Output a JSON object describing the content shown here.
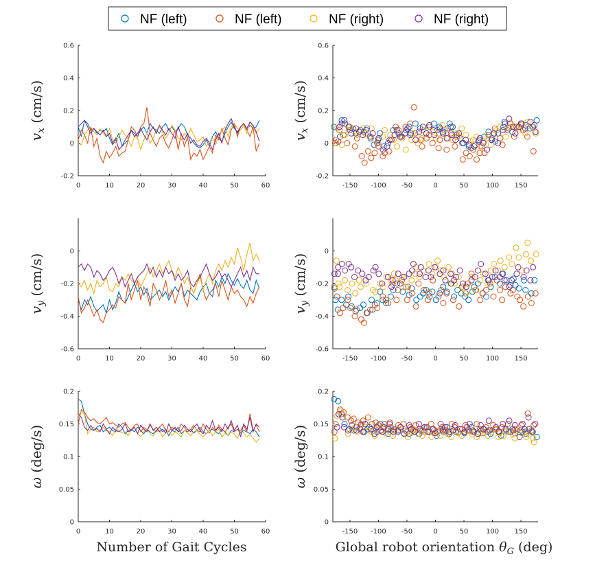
{
  "colors": {
    "s1": "#0072BD",
    "s2": "#D95319",
    "s3": "#EDB120",
    "s4": "#7E2F8E"
  },
  "legend": [
    {
      "name": "NF (left)",
      "color": "#0072BD"
    },
    {
      "name": "NF (left)",
      "color": "#D95319"
    },
    {
      "name": "NF (right)",
      "color": "#EDB120"
    },
    {
      "name": "NF (right)",
      "color": "#7E2F8E"
    }
  ],
  "chart_data": [
    {
      "id": "vx_cycles",
      "type": "line",
      "xlim": [
        0,
        60
      ],
      "ylim": [
        -0.2,
        0.6
      ],
      "xticks": [
        "0",
        "10",
        "20",
        "30",
        "40",
        "50",
        "60"
      ],
      "yticks": [
        "-0.2",
        "0",
        "0.2",
        "0.4",
        "0.6"
      ],
      "ylabel": "v_x (cm/s)",
      "xlabel": ""
    },
    {
      "id": "vx_orient",
      "type": "scatter",
      "xlim": [
        -180,
        180
      ],
      "ylim": [
        -0.2,
        0.6
      ],
      "xticks": [
        "-150",
        "-100",
        "-50",
        "0",
        "50",
        "100",
        "150"
      ],
      "yticks": [
        "-0.2",
        "0",
        "0.2",
        "0.4",
        "0.6"
      ],
      "ylabel": "v_x (cm/s)",
      "xlabel": ""
    },
    {
      "id": "vy_cycles",
      "type": "line",
      "xlim": [
        0,
        60
      ],
      "ylim": [
        -0.6,
        0.2
      ],
      "xticks": [
        "0",
        "10",
        "20",
        "30",
        "40",
        "50",
        "60"
      ],
      "yticks": [
        "-0.6",
        "-0.4",
        "-0.2",
        "0"
      ],
      "ylabel": "v_y (cm/s)",
      "xlabel": ""
    },
    {
      "id": "vy_orient",
      "type": "scatter",
      "xlim": [
        -180,
        180
      ],
      "ylim": [
        -0.6,
        0.2
      ],
      "xticks": [
        "-150",
        "-100",
        "-50",
        "0",
        "50",
        "100",
        "150"
      ],
      "yticks": [
        "-0.6",
        "-0.4",
        "-0.2",
        "0"
      ],
      "ylabel": "v_y (cm/s)",
      "xlabel": ""
    },
    {
      "id": "w_cycles",
      "type": "line",
      "xlim": [
        0,
        60
      ],
      "ylim": [
        0,
        0.2
      ],
      "xticks": [
        "0",
        "10",
        "20",
        "30",
        "40",
        "50",
        "60"
      ],
      "yticks": [
        "0",
        "0.05",
        "0.1",
        "0.15",
        "0.2"
      ],
      "ylabel": "ω (deg/s)",
      "xlabel": "Number of Gait Cycles"
    },
    {
      "id": "w_orient",
      "type": "scatter",
      "xlim": [
        -180,
        180
      ],
      "ylim": [
        0,
        0.2
      ],
      "xticks": [
        "-150",
        "-100",
        "-50",
        "0",
        "50",
        "100",
        "150"
      ],
      "yticks": [
        "0",
        "0.05",
        "0.1",
        "0.15",
        "0.2"
      ],
      "ylabel": "ω (deg/s)",
      "xlabel": "Global robot orientation θ_G (deg)"
    }
  ],
  "series_data": {
    "vx": [
      [
        0.1,
        0.04,
        0.14,
        0.12,
        0.08,
        0.09,
        0.06,
        0.08,
        0.07,
        0.09,
        0.03,
        -0.01,
        0.02,
        0.06,
        -0.02,
        0.0,
        0.02,
        0.08,
        0.06,
        0.04,
        0.08,
        0.1,
        0.06,
        0.12,
        0.09,
        0.08,
        0.06,
        0.1,
        0.12,
        0.08,
        0.1,
        0.07,
        0.09,
        0.12,
        0.1,
        0.05,
        0.03,
        0.0,
        -0.02,
        -0.03,
        -0.01,
        0.02,
        -0.02,
        0.04,
        0.07,
        0.03,
        0.01,
        0.06,
        0.1,
        0.13,
        0.09,
        0.07,
        0.1,
        0.12,
        0.08,
        0.11,
        0.09,
        0.1,
        0.14
      ],
      [
        0.02,
        0.08,
        0.05,
        0.0,
        0.1,
        -0.02,
        0.03,
        -0.08,
        -0.12,
        -0.05,
        -0.09,
        -0.06,
        -0.02,
        -0.08,
        -0.06,
        -0.05,
        0.02,
        0.1,
        0.08,
        0.04,
        0.1,
        0.12,
        0.22,
        0.06,
        0.02,
        -0.02,
        0.03,
        0.05,
        0.0,
        -0.03,
        0.02,
        0.08,
        -0.04,
        0.06,
        -0.02,
        0.04,
        -0.1,
        -0.06,
        -0.08,
        -0.04,
        -0.1,
        -0.06,
        -0.02,
        -0.06,
        0.05,
        0.02,
        0.09,
        0.03,
        -0.01,
        0.08,
        0.12,
        0.04,
        0.1,
        0.12,
        0.08,
        0.04,
        0.1,
        -0.05,
        0.0
      ],
      [
        0.0,
        -0.01,
        0.05,
        0.08,
        0.1,
        0.07,
        0.05,
        0.09,
        0.06,
        0.04,
        0.09,
        0.02,
        0.0,
        0.04,
        0.08,
        0.05,
        0.02,
        -0.02,
        0.04,
        0.03,
        -0.04,
        0.02,
        0.06,
        0.0,
        0.03,
        0.08,
        0.1,
        0.07,
        0.03,
        0.06,
        0.11,
        0.08,
        0.03,
        0.02,
        0.06,
        0.04,
        0.09,
        0.05,
        0.01,
        0.02,
        0.04,
        -0.02,
        0.01,
        0.03,
        -0.01,
        0.05,
        0.08,
        0.1,
        0.04,
        0.1,
        0.12,
        0.09,
        0.08,
        0.11,
        0.06,
        0.13,
        0.1,
        0.06,
        0.09
      ],
      [
        0.1,
        0.12,
        0.14,
        0.1,
        0.06,
        0.09,
        0.07,
        0.05,
        0.08,
        0.04,
        0.06,
        0.0,
        0.03,
        -0.04,
        -0.02,
        0.02,
        0.05,
        0.08,
        0.04,
        0.06,
        0.09,
        0.05,
        0.02,
        0.07,
        0.1,
        0.06,
        0.11,
        0.08,
        0.05,
        0.09,
        0.06,
        0.03,
        0.1,
        0.05,
        0.02,
        0.06,
        0.0,
        0.02,
        -0.01,
        -0.02,
        0.01,
        0.03,
        0.0,
        -0.04,
        0.02,
        0.06,
        0.0,
        0.08,
        0.12,
        0.15,
        0.1,
        0.06,
        0.1,
        0.12,
        0.09,
        0.13,
        0.11,
        0.07,
        0.01
      ]
    ],
    "vy": [
      [
        -0.3,
        -0.36,
        -0.3,
        -0.33,
        -0.28,
        -0.34,
        -0.37,
        -0.35,
        -0.33,
        -0.38,
        -0.3,
        -0.36,
        -0.32,
        -0.25,
        -0.3,
        -0.32,
        -0.28,
        -0.24,
        -0.2,
        -0.25,
        -0.22,
        -0.27,
        -0.23,
        -0.3,
        -0.28,
        -0.26,
        -0.24,
        -0.28,
        -0.25,
        -0.3,
        -0.26,
        -0.22,
        -0.25,
        -0.2,
        -0.28,
        -0.24,
        -0.26,
        -0.28,
        -0.3,
        -0.25,
        -0.22,
        -0.2,
        -0.26,
        -0.28,
        -0.18,
        -0.22,
        -0.16,
        -0.2,
        -0.14,
        -0.18,
        -0.21,
        -0.17,
        -0.21,
        -0.23,
        -0.18,
        -0.24,
        -0.26,
        -0.18,
        -0.23
      ],
      [
        -0.28,
        -0.38,
        -0.35,
        -0.3,
        -0.35,
        -0.4,
        -0.36,
        -0.42,
        -0.44,
        -0.38,
        -0.36,
        -0.33,
        -0.35,
        -0.28,
        -0.3,
        -0.32,
        -0.2,
        -0.3,
        -0.24,
        -0.18,
        -0.3,
        -0.22,
        -0.26,
        -0.34,
        -0.2,
        -0.24,
        -0.3,
        -0.26,
        -0.18,
        -0.28,
        -0.24,
        -0.32,
        -0.26,
        -0.2,
        -0.3,
        -0.34,
        -0.22,
        -0.26,
        -0.2,
        -0.14,
        -0.24,
        -0.3,
        -0.26,
        -0.24,
        -0.2,
        -0.28,
        -0.18,
        -0.24,
        -0.3,
        -0.22,
        -0.26,
        -0.24,
        -0.28,
        -0.3,
        -0.34,
        -0.28,
        -0.32,
        -0.26,
        -0.22
      ],
      [
        -0.2,
        -0.22,
        -0.18,
        -0.24,
        -0.2,
        -0.26,
        -0.18,
        -0.22,
        -0.2,
        -0.16,
        -0.24,
        -0.25,
        -0.2,
        -0.22,
        -0.16,
        -0.18,
        -0.14,
        -0.18,
        -0.2,
        -0.16,
        -0.22,
        -0.18,
        -0.14,
        -0.1,
        -0.16,
        -0.12,
        -0.08,
        -0.14,
        -0.1,
        -0.06,
        -0.12,
        -0.16,
        -0.1,
        -0.14,
        -0.2,
        -0.16,
        -0.22,
        -0.26,
        -0.2,
        -0.16,
        -0.24,
        -0.18,
        -0.14,
        -0.2,
        -0.12,
        -0.08,
        -0.12,
        -0.06,
        -0.1,
        -0.04,
        -0.08,
        0.02,
        -0.04,
        -0.12,
        -0.02,
        0.05,
        -0.06,
        -0.02,
        -0.06
      ],
      [
        -0.1,
        -0.08,
        -0.12,
        -0.08,
        -0.1,
        -0.16,
        -0.12,
        -0.14,
        -0.18,
        -0.16,
        -0.12,
        -0.1,
        -0.14,
        -0.2,
        -0.16,
        -0.22,
        -0.18,
        -0.14,
        -0.2,
        -0.16,
        -0.14,
        -0.12,
        -0.08,
        -0.14,
        -0.1,
        -0.16,
        -0.12,
        -0.16,
        -0.1,
        -0.14,
        -0.12,
        -0.18,
        -0.14,
        -0.18,
        -0.16,
        -0.12,
        -0.2,
        -0.22,
        -0.18,
        -0.16,
        -0.12,
        -0.08,
        -0.14,
        -0.18,
        -0.16,
        -0.12,
        -0.16,
        -0.14,
        -0.18,
        -0.22,
        -0.18,
        -0.14,
        -0.1,
        -0.16,
        -0.12,
        -0.18,
        -0.1,
        -0.14,
        -0.14
      ]
    ],
    "w": [
      [
        0.188,
        0.185,
        0.165,
        0.15,
        0.142,
        0.14,
        0.145,
        0.148,
        0.138,
        0.142,
        0.145,
        0.14,
        0.138,
        0.15,
        0.145,
        0.135,
        0.14,
        0.142,
        0.138,
        0.145,
        0.14,
        0.135,
        0.142,
        0.138,
        0.135,
        0.14,
        0.145,
        0.138,
        0.142,
        0.132,
        0.14,
        0.138,
        0.145,
        0.135,
        0.14,
        0.138,
        0.142,
        0.136,
        0.14,
        0.145,
        0.138,
        0.135,
        0.14,
        0.142,
        0.138,
        0.135,
        0.142,
        0.138,
        0.132,
        0.14,
        0.138,
        0.142,
        0.136,
        0.14,
        0.138,
        0.135,
        0.142,
        0.138,
        0.13
      ],
      [
        0.15,
        0.172,
        0.168,
        0.16,
        0.155,
        0.158,
        0.152,
        0.15,
        0.155,
        0.16,
        0.15,
        0.152,
        0.148,
        0.145,
        0.15,
        0.152,
        0.145,
        0.14,
        0.148,
        0.15,
        0.138,
        0.145,
        0.14,
        0.148,
        0.142,
        0.138,
        0.145,
        0.15,
        0.14,
        0.138,
        0.145,
        0.142,
        0.14,
        0.15,
        0.145,
        0.138,
        0.142,
        0.148,
        0.14,
        0.138,
        0.15,
        0.142,
        0.136,
        0.145,
        0.14,
        0.148,
        0.142,
        0.138,
        0.145,
        0.15,
        0.138,
        0.142,
        0.14,
        0.148,
        0.138,
        0.166,
        0.14,
        0.148,
        0.138
      ],
      [
        0.162,
        0.17,
        0.165,
        0.135,
        0.142,
        0.145,
        0.138,
        0.14,
        0.145,
        0.14,
        0.138,
        0.132,
        0.142,
        0.14,
        0.136,
        0.138,
        0.132,
        0.14,
        0.145,
        0.136,
        0.13,
        0.138,
        0.142,
        0.135,
        0.132,
        0.138,
        0.14,
        0.13,
        0.136,
        0.14,
        0.132,
        0.138,
        0.135,
        0.13,
        0.14,
        0.136,
        0.132,
        0.138,
        0.14,
        0.134,
        0.13,
        0.136,
        0.14,
        0.132,
        0.138,
        0.142,
        0.13,
        0.136,
        0.132,
        0.138,
        0.134,
        0.128,
        0.14,
        0.136,
        0.13,
        0.134,
        0.128,
        0.122,
        0.128
      ],
      [
        0.165,
        0.16,
        0.145,
        0.14,
        0.148,
        0.14,
        0.143,
        0.138,
        0.15,
        0.142,
        0.135,
        0.145,
        0.14,
        0.138,
        0.142,
        0.15,
        0.138,
        0.14,
        0.145,
        0.135,
        0.148,
        0.142,
        0.138,
        0.15,
        0.14,
        0.145,
        0.138,
        0.142,
        0.136,
        0.15,
        0.14,
        0.145,
        0.138,
        0.14,
        0.148,
        0.142,
        0.138,
        0.145,
        0.15,
        0.14,
        0.135,
        0.148,
        0.142,
        0.155,
        0.14,
        0.145,
        0.138,
        0.15,
        0.142,
        0.155,
        0.14,
        0.148,
        0.13,
        0.15,
        0.142,
        0.16,
        0.138,
        0.15,
        0.145
      ]
    ]
  }
}
